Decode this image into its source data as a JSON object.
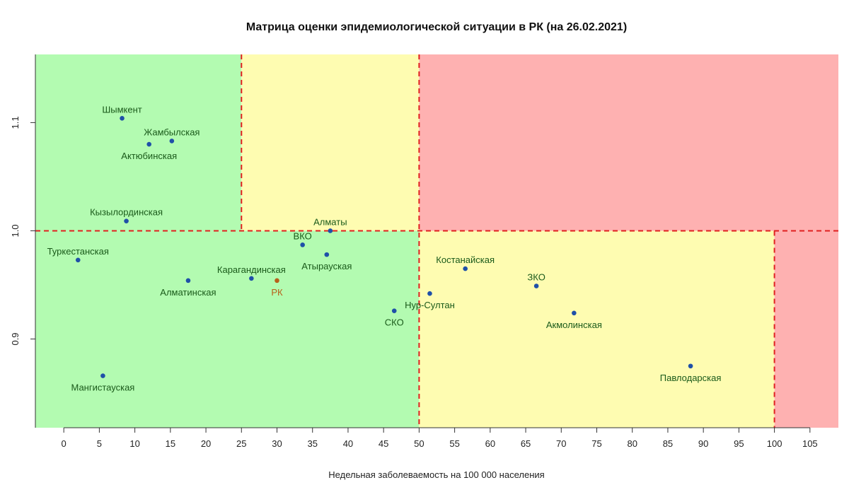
{
  "title": "Матрица оценки эпидемиологической ситуации в РК (на 26.02.2021)",
  "chart_data": {
    "type": "scatter",
    "title": "Матрица оценки эпидемиологической ситуации в РК (на 26.02.2021)",
    "xlabel": "Недельная заболеваемость на 100 000 населения",
    "ylabel": "",
    "xlim": [
      -4,
      109
    ],
    "ylim": [
      0.818,
      1.163
    ],
    "x_ticks": [
      0,
      5,
      10,
      15,
      20,
      25,
      30,
      35,
      40,
      45,
      50,
      55,
      60,
      65,
      70,
      75,
      80,
      85,
      90,
      95,
      100,
      105
    ],
    "y_ticks": [
      0.9,
      1.0,
      1.1
    ],
    "y_tick_labels": [
      "0.9",
      "1.0",
      "1.1"
    ],
    "grid": false,
    "zones": [
      {
        "x": [
          -4,
          50
        ],
        "y": [
          0.818,
          1.0
        ],
        "color": "#b3fbb1"
      },
      {
        "x": [
          -4,
          25
        ],
        "y": [
          1.0,
          1.163
        ],
        "color": "#b3fbb1"
      },
      {
        "x": [
          25,
          50
        ],
        "y": [
          1.0,
          1.163
        ],
        "color": "#fefcb1"
      },
      {
        "x": [
          50,
          100
        ],
        "y": [
          0.818,
          1.0
        ],
        "color": "#fefcb1"
      },
      {
        "x": [
          50,
          109
        ],
        "y": [
          1.0,
          1.163
        ],
        "color": "#feb1b1"
      },
      {
        "x": [
          100,
          109
        ],
        "y": [
          0.818,
          1.0
        ],
        "color": "#feb1b1"
      }
    ],
    "threshold_lines": [
      {
        "orientation": "horizontal",
        "value": 1.0,
        "from": -4,
        "to": 109
      },
      {
        "orientation": "vertical",
        "value": 25,
        "from": 1.0,
        "to": 1.163
      },
      {
        "orientation": "vertical",
        "value": 50,
        "from": 0.818,
        "to": 1.163
      },
      {
        "orientation": "vertical",
        "value": 100,
        "from": 0.818,
        "to": 1.0
      }
    ],
    "line_color": "#e02020",
    "point_color": "#1f50a8",
    "highlight_color": "#b8601a",
    "label_color": "#1a5a1a",
    "points": [
      {
        "name": "Шымкент",
        "x": 8.2,
        "y": 1.104,
        "anchor": "middle",
        "pos": "above"
      },
      {
        "name": "Жамбылская",
        "x": 15.2,
        "y": 1.083,
        "anchor": "middle",
        "pos": "above"
      },
      {
        "name": "Актюбинская",
        "x": 12.0,
        "y": 1.08,
        "anchor": "middle",
        "pos": "below"
      },
      {
        "name": "Кызылординская",
        "x": 8.8,
        "y": 1.009,
        "anchor": "middle",
        "pos": "above"
      },
      {
        "name": "Туркестанская",
        "x": 2.0,
        "y": 0.973,
        "anchor": "middle",
        "pos": "above"
      },
      {
        "name": "Алматинская",
        "x": 17.5,
        "y": 0.954,
        "anchor": "middle",
        "pos": "below"
      },
      {
        "name": "Карагандинская",
        "x": 26.4,
        "y": 0.956,
        "anchor": "middle",
        "pos": "above"
      },
      {
        "name": "РК",
        "x": 30.0,
        "y": 0.954,
        "anchor": "middle",
        "pos": "below",
        "highlight": true
      },
      {
        "name": "ВКО",
        "x": 33.6,
        "y": 0.987,
        "anchor": "middle",
        "pos": "above"
      },
      {
        "name": "Алматы",
        "x": 37.5,
        "y": 1.0,
        "anchor": "middle",
        "pos": "above"
      },
      {
        "name": "Атырауская",
        "x": 37.0,
        "y": 0.978,
        "anchor": "middle",
        "pos": "below"
      },
      {
        "name": "СКО",
        "x": 46.5,
        "y": 0.926,
        "anchor": "middle",
        "pos": "below"
      },
      {
        "name": "Нур-Султан",
        "x": 51.5,
        "y": 0.942,
        "anchor": "middle",
        "pos": "below"
      },
      {
        "name": "Мангистауская",
        "x": 5.5,
        "y": 0.866,
        "anchor": "middle",
        "pos": "below"
      },
      {
        "name": "Костанайская",
        "x": 56.5,
        "y": 0.965,
        "anchor": "middle",
        "pos": "above"
      },
      {
        "name": "ЗКО",
        "x": 66.5,
        "y": 0.949,
        "anchor": "middle",
        "pos": "above"
      },
      {
        "name": "Акмолинская",
        "x": 71.8,
        "y": 0.924,
        "anchor": "middle",
        "pos": "below"
      },
      {
        "name": "Павлодарская",
        "x": 88.2,
        "y": 0.875,
        "anchor": "middle",
        "pos": "below"
      }
    ]
  }
}
